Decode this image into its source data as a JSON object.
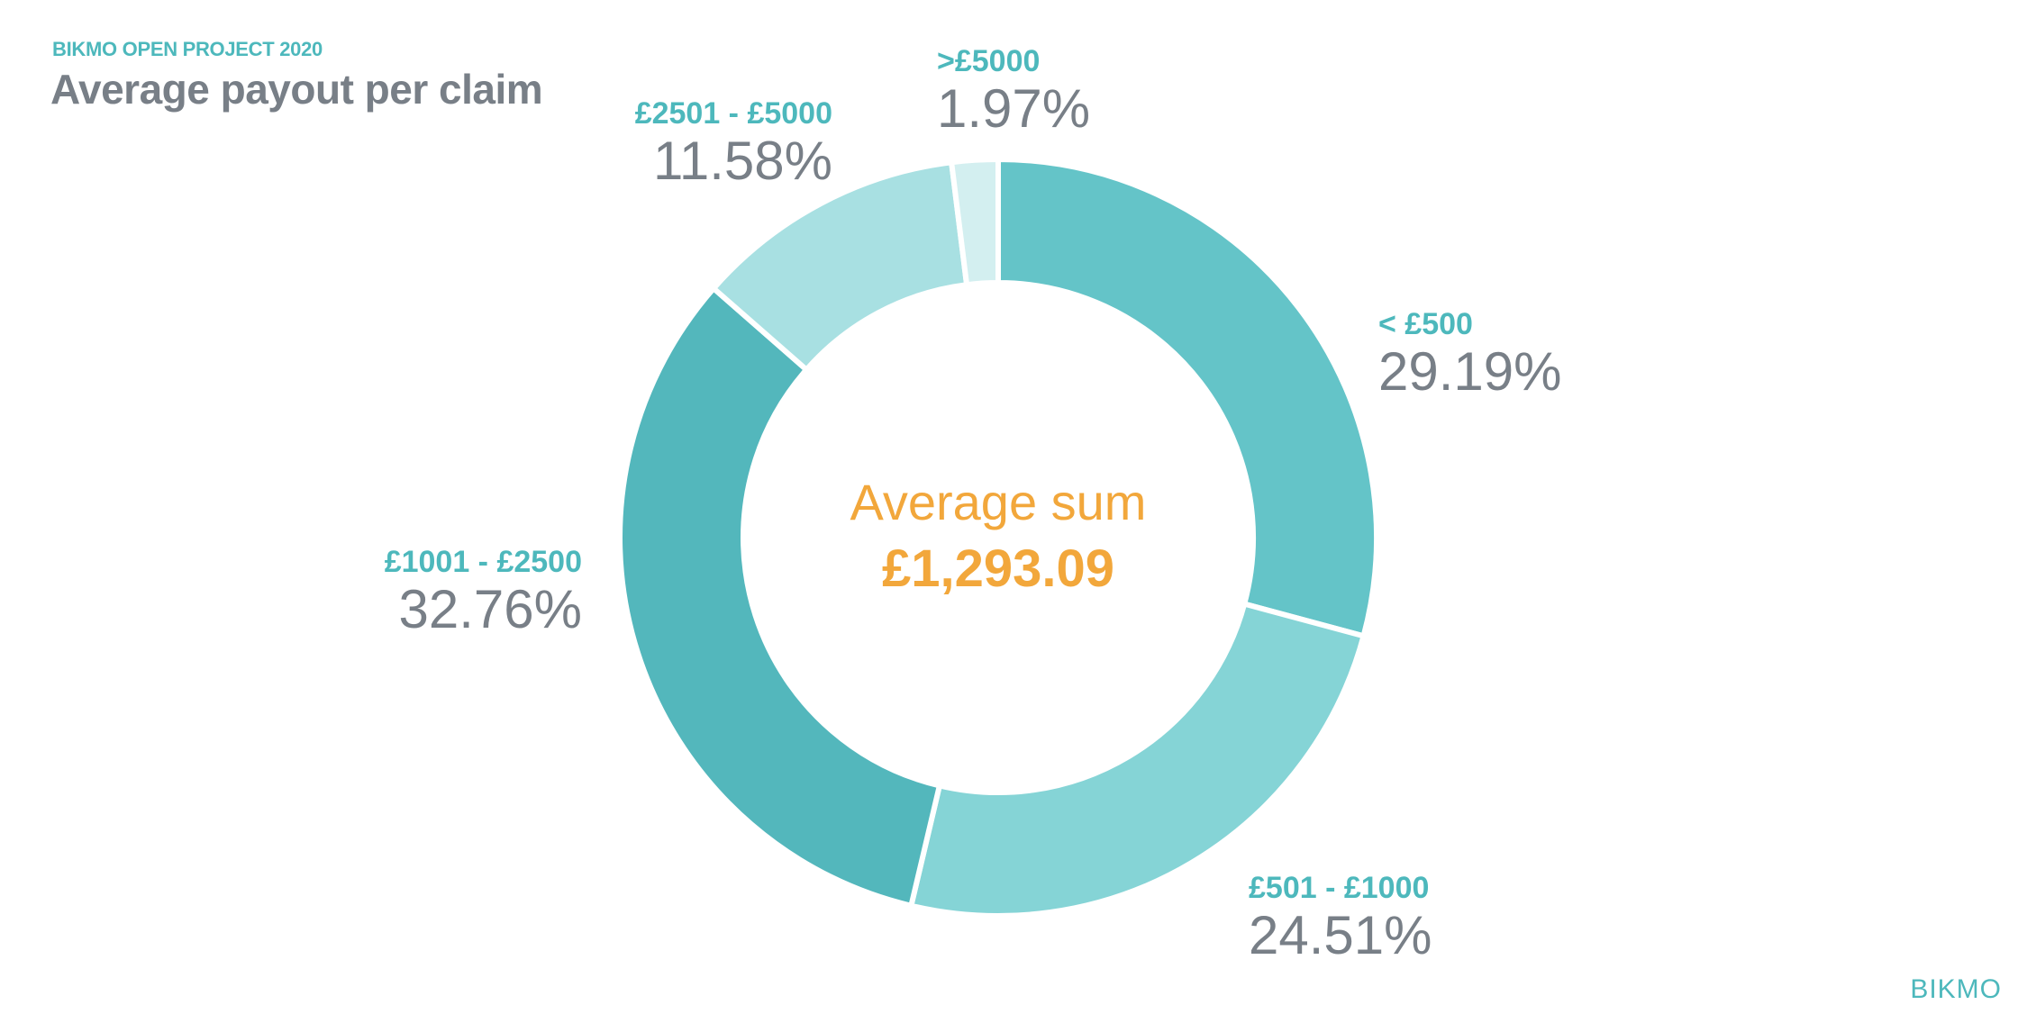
{
  "header": {
    "eyebrow": "BIKMO OPEN PROJECT 2020",
    "title": "Average payout per claim"
  },
  "center": {
    "title": "Average sum",
    "value": "£1,293.09"
  },
  "labels": [
    {
      "range": "< £500",
      "pct": "29.19%"
    },
    {
      "range": "£501 - £1000",
      "pct": "24.51%"
    },
    {
      "range": "£1001 - £2500",
      "pct": "32.76%"
    },
    {
      "range": "£2501 - £5000",
      "pct": "11.58%"
    },
    {
      "range": ">£5000",
      "pct": "1.97%"
    }
  ],
  "brand": "BIKMO",
  "colors": {
    "accent_teal": "#4DB8BC",
    "text_grey": "#787F87",
    "center_orange": "#F2A73B",
    "slices": [
      "#64C4C8",
      "#85D4D6",
      "#53B7BC",
      "#A8E0E2",
      "#D3EFF0"
    ]
  },
  "chart_data": {
    "type": "pie",
    "subtype": "donut",
    "title": "Average payout per claim",
    "subtitle": "BIKMO OPEN PROJECT 2020",
    "categories": [
      "< £500",
      "£501 - £1000",
      "£1001 - £2500",
      "£2501 - £5000",
      ">£5000"
    ],
    "values": [
      29.19,
      24.51,
      32.76,
      11.58,
      1.97
    ],
    "unit": "%",
    "center_annotation": {
      "label": "Average sum",
      "value": "£1,293.09"
    },
    "start_angle": "12 o'clock",
    "direction": "clockwise",
    "legend": "none (direct labels)"
  }
}
